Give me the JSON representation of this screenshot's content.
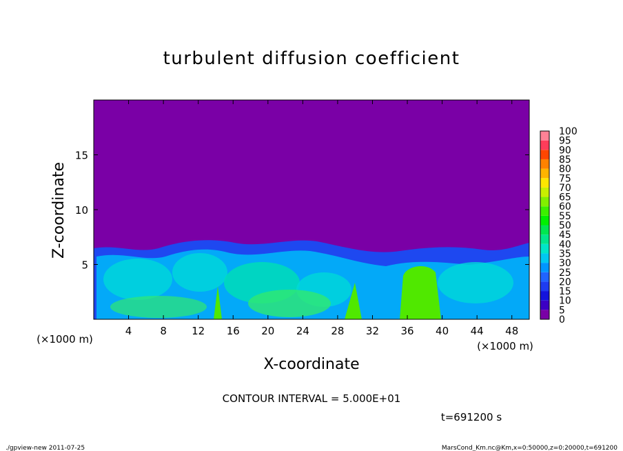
{
  "chart_data": {
    "type": "heatmap",
    "title": "turbulent diffusion coefficient",
    "xlabel": "X-coordinate",
    "ylabel": "Z-coordinate",
    "x_unit": "(×1000 m)",
    "y_unit": "(×1000 m)",
    "xlim": [
      0,
      50
    ],
    "xticks": [
      4,
      8,
      12,
      16,
      20,
      24,
      28,
      32,
      36,
      40,
      44,
      48
    ],
    "ylim": [
      0,
      20
    ],
    "yticks": [
      5,
      10,
      15
    ],
    "background_color": "#7a00a6",
    "colorbar": {
      "levels": [
        0,
        5,
        10,
        15,
        20,
        25,
        30,
        35,
        40,
        45,
        50,
        55,
        60,
        65,
        70,
        75,
        80,
        85,
        90,
        95,
        100
      ],
      "colors": [
        "#7a00a6",
        "#3c00c4",
        "#1414dc",
        "#1e3cf0",
        "#2064ff",
        "#0096ff",
        "#00c8f0",
        "#00e6c8",
        "#00e68c",
        "#00e650",
        "#00f000",
        "#3cf000",
        "#82f000",
        "#c8f000",
        "#ffe600",
        "#ffb400",
        "#ff8200",
        "#ff4600",
        "#ff3c5a",
        "#ff8296"
      ]
    },
    "contour_interval": "CONTOUR INTERVAL = 5.000E+01",
    "time": "t=691200 s",
    "footer_left": "./gpview-new   2011-07-25",
    "footer_right": "MarsCond_Km.nc@Km,x=0:50000,z=0:20000,t=691200"
  }
}
